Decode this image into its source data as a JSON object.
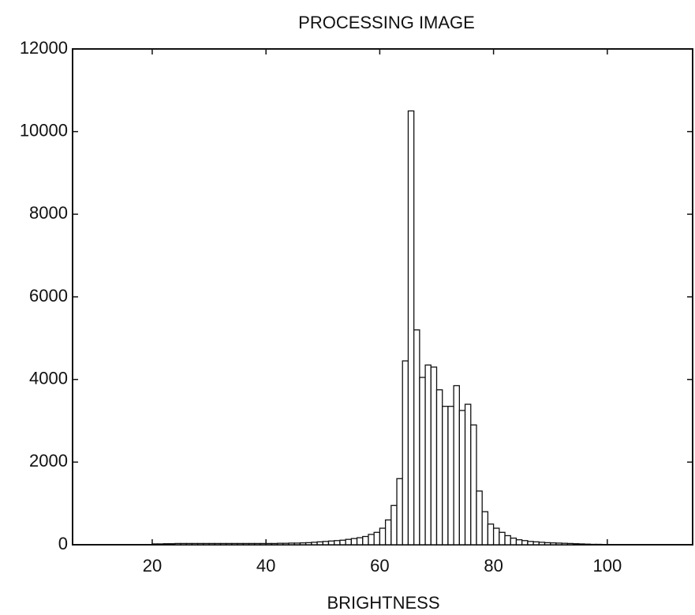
{
  "chart_data": {
    "type": "histogram",
    "title": "PROCESSING IMAGE",
    "x_label": "BRIGHTNESS",
    "bins": [
      20,
      21,
      22,
      23,
      24,
      25,
      26,
      27,
      28,
      29,
      30,
      31,
      32,
      33,
      34,
      35,
      36,
      37,
      38,
      39,
      40,
      41,
      42,
      43,
      44,
      45,
      46,
      47,
      48,
      49,
      50,
      51,
      52,
      53,
      54,
      55,
      56,
      57,
      58,
      59,
      60,
      61,
      62,
      63,
      64,
      65,
      66,
      67,
      68,
      69,
      70,
      71,
      72,
      73,
      74,
      75,
      76,
      77,
      78,
      79,
      80,
      81,
      82,
      83,
      84,
      85,
      86,
      87,
      88,
      89,
      90,
      91,
      92,
      93,
      94,
      95,
      96,
      97,
      98,
      99,
      100
    ],
    "values": [
      20,
      20,
      25,
      25,
      30,
      30,
      30,
      30,
      30,
      30,
      30,
      30,
      30,
      30,
      30,
      30,
      30,
      30,
      30,
      30,
      30,
      30,
      35,
      35,
      40,
      40,
      45,
      50,
      60,
      70,
      80,
      90,
      100,
      110,
      130,
      150,
      170,
      200,
      250,
      300,
      400,
      600,
      950,
      1600,
      4450,
      10500,
      5200,
      4050,
      4350,
      4300,
      3750,
      3350,
      3350,
      3850,
      3250,
      3400,
      2900,
      1300,
      800,
      500,
      400,
      300,
      220,
      160,
      120,
      100,
      80,
      70,
      60,
      50,
      45,
      40,
      35,
      30,
      25,
      20,
      15,
      10,
      10,
      5
    ],
    "color": "#ffffff",
    "xlim": [
      6,
      115
    ],
    "ylim": [
      0,
      12000
    ],
    "xticks": [
      20,
      40,
      60,
      80,
      100
    ],
    "yticks": [
      0,
      2000,
      4000,
      6000,
      8000,
      10000,
      12000
    ],
    "grid": false
  }
}
